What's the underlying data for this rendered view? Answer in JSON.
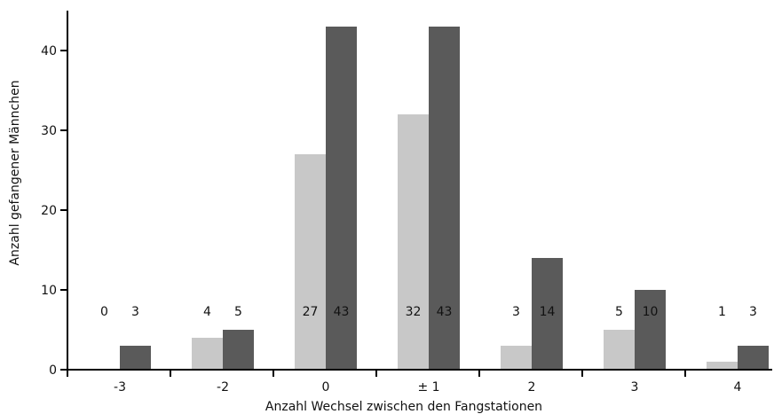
{
  "chart_data": {
    "type": "bar",
    "xlabel": "Anzahl Wechsel zwischen den Fangstationen",
    "ylabel": "Anzahl gefangener Männchen",
    "categories": [
      "-3",
      "-2",
      "0",
      "± 1",
      "2",
      "3",
      "4"
    ],
    "ylim": [
      0,
      45
    ],
    "yticks": [
      0,
      10,
      20,
      30,
      40
    ],
    "grid": false,
    "legend": "none",
    "series": [
      {
        "values": [
          0,
          4,
          27,
          32,
          3,
          5,
          1
        ],
        "color": "#c8c8c8"
      },
      {
        "values": [
          3,
          5,
          43,
          43,
          14,
          10,
          3
        ],
        "color": "#5a5a5a"
      }
    ],
    "data_labels": [
      [
        "0",
        "4",
        "27",
        "32",
        "3",
        "5",
        "1"
      ],
      [
        "3",
        "5",
        "43",
        "43",
        "14",
        "10",
        "3"
      ]
    ]
  }
}
